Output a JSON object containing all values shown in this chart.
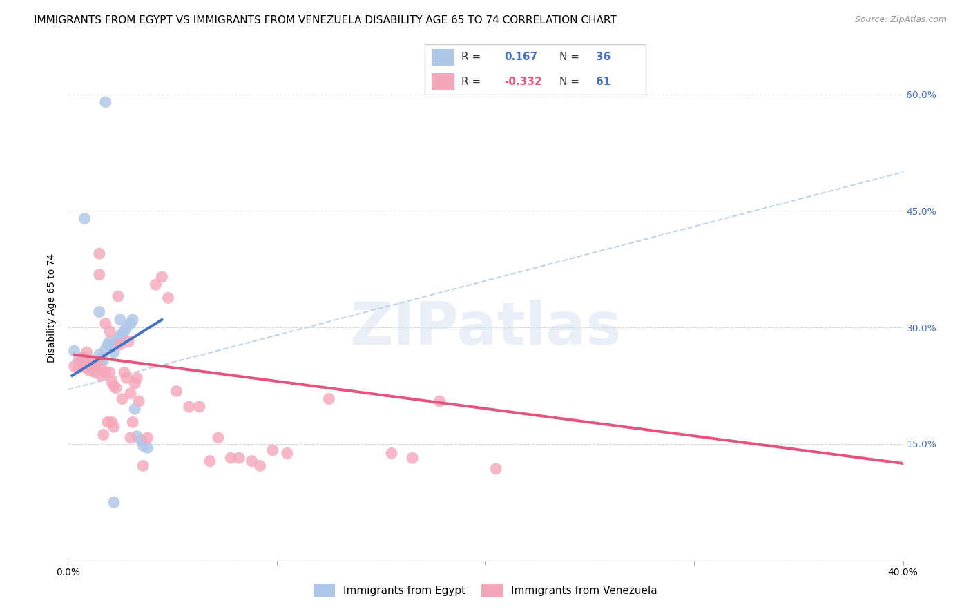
{
  "title": "IMMIGRANTS FROM EGYPT VS IMMIGRANTS FROM VENEZUELA DISABILITY AGE 65 TO 74 CORRELATION CHART",
  "source": "Source: ZipAtlas.com",
  "ylabel": "Disability Age 65 to 74",
  "xlim": [
    0.0,
    0.4
  ],
  "ylim": [
    0.0,
    0.65
  ],
  "yticks": [
    0.0,
    0.15,
    0.3,
    0.45,
    0.6
  ],
  "watermark": "ZIPatlas",
  "egypt_color": "#aec6e8",
  "venezuela_color": "#f4a7b9",
  "egypt_R": 0.167,
  "egypt_N": 36,
  "venezuela_R": -0.332,
  "venezuela_N": 61,
  "egypt_line_color": "#4472c4",
  "venezuela_line_color": "#e8527a",
  "trendline_dash_color": "#b8cfe8",
  "egypt_points": [
    [
      0.003,
      0.27
    ],
    [
      0.005,
      0.258
    ],
    [
      0.007,
      0.262
    ],
    [
      0.008,
      0.255
    ],
    [
      0.009,
      0.248
    ],
    [
      0.01,
      0.252
    ],
    [
      0.011,
      0.258
    ],
    [
      0.012,
      0.245
    ],
    [
      0.013,
      0.25
    ],
    [
      0.014,
      0.255
    ],
    [
      0.015,
      0.265
    ],
    [
      0.016,
      0.26
    ],
    [
      0.017,
      0.258
    ],
    [
      0.018,
      0.272
    ],
    [
      0.019,
      0.278
    ],
    [
      0.02,
      0.282
    ],
    [
      0.021,
      0.275
    ],
    [
      0.022,
      0.268
    ],
    [
      0.023,
      0.28
    ],
    [
      0.024,
      0.285
    ],
    [
      0.025,
      0.29
    ],
    [
      0.026,
      0.288
    ],
    [
      0.027,
      0.295
    ],
    [
      0.028,
      0.3
    ],
    [
      0.03,
      0.305
    ],
    [
      0.031,
      0.31
    ],
    [
      0.032,
      0.195
    ],
    [
      0.033,
      0.16
    ],
    [
      0.035,
      0.155
    ],
    [
      0.036,
      0.148
    ],
    [
      0.038,
      0.145
    ],
    [
      0.008,
      0.44
    ],
    [
      0.018,
      0.59
    ],
    [
      0.015,
      0.32
    ],
    [
      0.025,
      0.31
    ],
    [
      0.022,
      0.075
    ]
  ],
  "venezuela_points": [
    [
      0.003,
      0.25
    ],
    [
      0.005,
      0.248
    ],
    [
      0.006,
      0.258
    ],
    [
      0.007,
      0.252
    ],
    [
      0.008,
      0.262
    ],
    [
      0.009,
      0.268
    ],
    [
      0.01,
      0.258
    ],
    [
      0.01,
      0.245
    ],
    [
      0.011,
      0.255
    ],
    [
      0.012,
      0.252
    ],
    [
      0.013,
      0.248
    ],
    [
      0.013,
      0.242
    ],
    [
      0.014,
      0.255
    ],
    [
      0.015,
      0.395
    ],
    [
      0.015,
      0.368
    ],
    [
      0.016,
      0.248
    ],
    [
      0.016,
      0.238
    ],
    [
      0.017,
      0.162
    ],
    [
      0.018,
      0.242
    ],
    [
      0.018,
      0.305
    ],
    [
      0.019,
      0.178
    ],
    [
      0.02,
      0.295
    ],
    [
      0.02,
      0.242
    ],
    [
      0.021,
      0.23
    ],
    [
      0.021,
      0.178
    ],
    [
      0.022,
      0.225
    ],
    [
      0.022,
      0.172
    ],
    [
      0.023,
      0.222
    ],
    [
      0.024,
      0.34
    ],
    [
      0.025,
      0.278
    ],
    [
      0.026,
      0.208
    ],
    [
      0.027,
      0.242
    ],
    [
      0.028,
      0.235
    ],
    [
      0.029,
      0.282
    ],
    [
      0.03,
      0.215
    ],
    [
      0.03,
      0.158
    ],
    [
      0.031,
      0.178
    ],
    [
      0.032,
      0.228
    ],
    [
      0.033,
      0.235
    ],
    [
      0.034,
      0.205
    ],
    [
      0.036,
      0.122
    ],
    [
      0.038,
      0.158
    ],
    [
      0.042,
      0.355
    ],
    [
      0.045,
      0.365
    ],
    [
      0.048,
      0.338
    ],
    [
      0.052,
      0.218
    ],
    [
      0.058,
      0.198
    ],
    [
      0.063,
      0.198
    ],
    [
      0.068,
      0.128
    ],
    [
      0.072,
      0.158
    ],
    [
      0.078,
      0.132
    ],
    [
      0.082,
      0.132
    ],
    [
      0.088,
      0.128
    ],
    [
      0.092,
      0.122
    ],
    [
      0.098,
      0.142
    ],
    [
      0.105,
      0.138
    ],
    [
      0.125,
      0.208
    ],
    [
      0.155,
      0.138
    ],
    [
      0.165,
      0.132
    ],
    [
      0.178,
      0.205
    ],
    [
      0.205,
      0.118
    ]
  ],
  "background_color": "#ffffff",
  "grid_color": "#d8d8d8",
  "title_fontsize": 11,
  "label_fontsize": 10,
  "tick_fontsize": 10
}
